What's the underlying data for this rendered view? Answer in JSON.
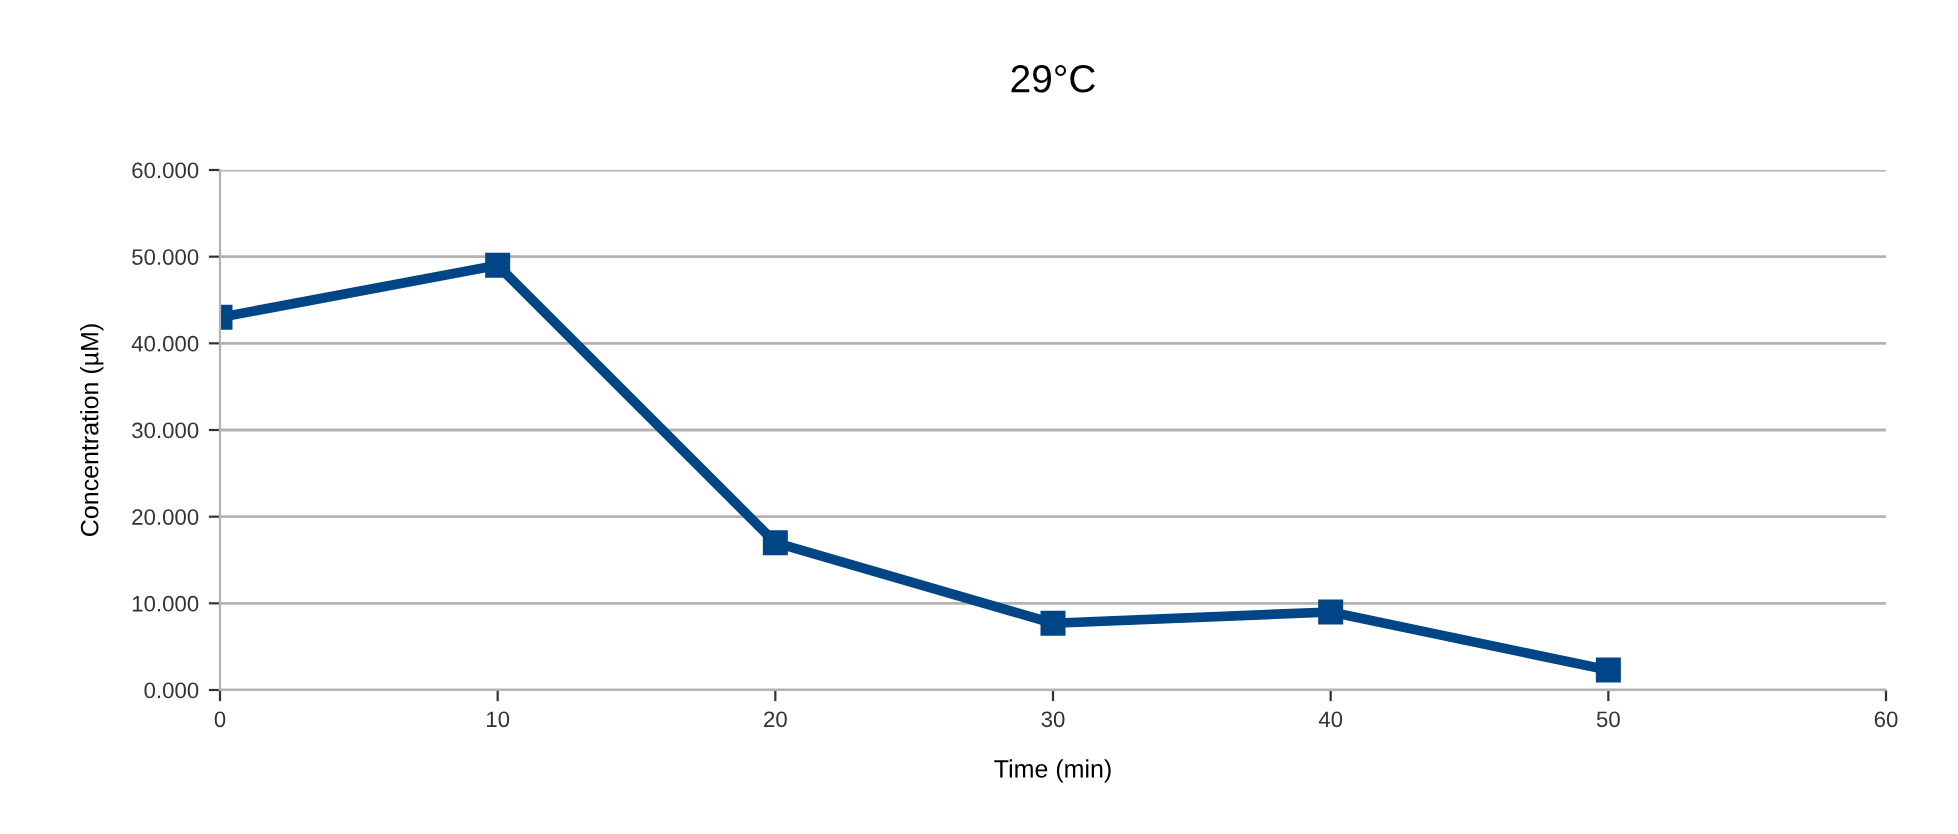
{
  "chart_data": {
    "type": "line",
    "title": "29°C",
    "xlabel": "Time (min)",
    "ylabel": "Concentration (µM)",
    "x": [
      0,
      10,
      20,
      30,
      40,
      50
    ],
    "series": [
      {
        "color": "#004586",
        "values": [
          43,
          49,
          17,
          7.7,
          9,
          2.3
        ]
      }
    ],
    "xlim": [
      0,
      60
    ],
    "xticks": [
      0,
      10,
      20,
      30,
      40,
      50,
      60
    ],
    "ylim": [
      0,
      60
    ],
    "yticks": [
      {
        "value": 0,
        "label": "0.000"
      },
      {
        "value": 10,
        "label": "10.000"
      },
      {
        "value": 20,
        "label": "20.000"
      },
      {
        "value": 30,
        "label": "30.000"
      },
      {
        "value": 40,
        "label": "40.000"
      },
      {
        "value": 50,
        "label": "50.000"
      },
      {
        "value": 60,
        "label": "60.000"
      }
    ],
    "grid": "y",
    "marker": "square",
    "line_style": "solid",
    "legend": false
  }
}
